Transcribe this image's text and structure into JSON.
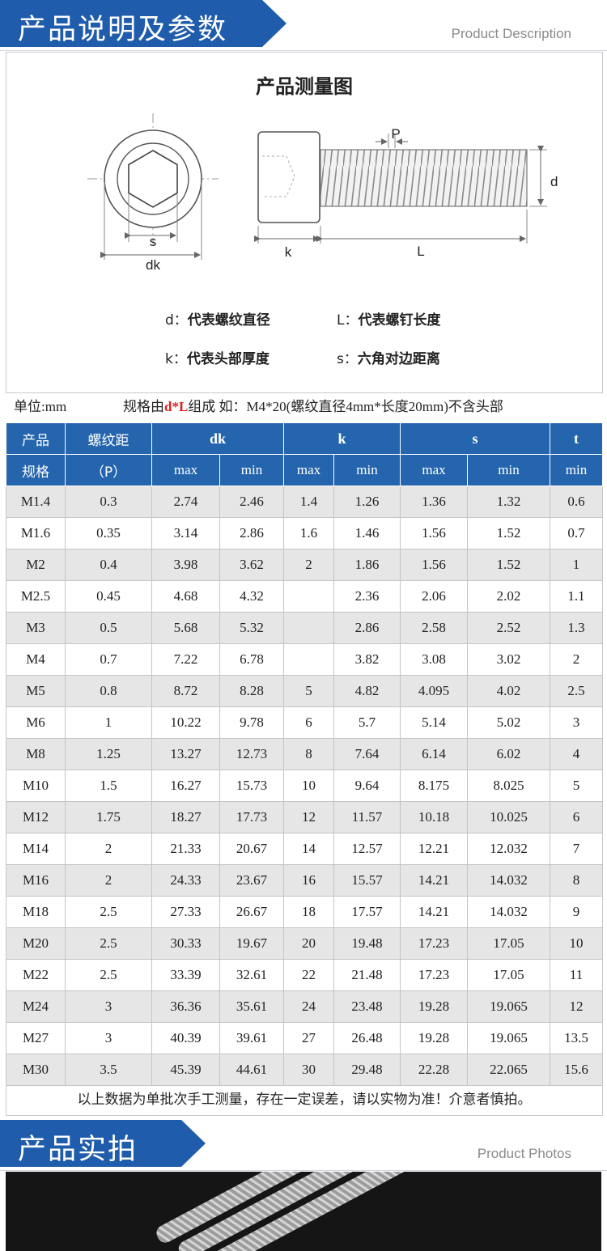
{
  "section1": {
    "title": "产品说明及参数",
    "subtitle": "Product Description"
  },
  "diagram": {
    "title": "产品测量图",
    "labels": {
      "s": "s",
      "dk": "dk",
      "P": "P",
      "d": "d",
      "k": "k",
      "L": "L"
    },
    "legend": [
      {
        "key": "d：",
        "text": "代表螺纹直径"
      },
      {
        "key": "L：",
        "text": "代表螺钉长度"
      },
      {
        "key": "k：",
        "text": "代表头部厚度"
      },
      {
        "key": "s：",
        "text": "六角对边距离"
      }
    ]
  },
  "unit": {
    "label": "单位:mm",
    "note_prefix": "规格由",
    "note_highlight": "d*L",
    "note_suffix": "组成 如：M4*20(螺纹直径4mm*长度20mm)不含头部"
  },
  "table": {
    "header_top": [
      "产品",
      "螺纹距",
      "dk",
      "k",
      "s",
      "t"
    ],
    "header_bottom_left": [
      "规格",
      "（P）"
    ],
    "subheaders": [
      "max",
      "min",
      "max",
      "min",
      "max",
      "min",
      "min"
    ],
    "rows": [
      [
        "M1.4",
        "0.3",
        "2.74",
        "2.46",
        "1.4",
        "1.26",
        "1.36",
        "1.32",
        "0.6"
      ],
      [
        "M1.6",
        "0.35",
        "3.14",
        "2.86",
        "1.6",
        "1.46",
        "1.56",
        "1.52",
        "0.7"
      ],
      [
        "M2",
        "0.4",
        "3.98",
        "3.62",
        "2",
        "1.86",
        "1.56",
        "1.52",
        "1"
      ],
      [
        "M2.5",
        "0.45",
        "4.68",
        "4.32",
        "",
        "2.36",
        "2.06",
        "2.02",
        "1.1"
      ],
      [
        "M3",
        "0.5",
        "5.68",
        "5.32",
        "",
        "2.86",
        "2.58",
        "2.52",
        "1.3"
      ],
      [
        "M4",
        "0.7",
        "7.22",
        "6.78",
        "",
        "3.82",
        "3.08",
        "3.02",
        "2"
      ],
      [
        "M5",
        "0.8",
        "8.72",
        "8.28",
        "5",
        "4.82",
        "4.095",
        "4.02",
        "2.5"
      ],
      [
        "M6",
        "1",
        "10.22",
        "9.78",
        "6",
        "5.7",
        "5.14",
        "5.02",
        "3"
      ],
      [
        "M8",
        "1.25",
        "13.27",
        "12.73",
        "8",
        "7.64",
        "6.14",
        "6.02",
        "4"
      ],
      [
        "M10",
        "1.5",
        "16.27",
        "15.73",
        "10",
        "9.64",
        "8.175",
        "8.025",
        "5"
      ],
      [
        "M12",
        "1.75",
        "18.27",
        "17.73",
        "12",
        "11.57",
        "10.18",
        "10.025",
        "6"
      ],
      [
        "M14",
        "2",
        "21.33",
        "20.67",
        "14",
        "12.57",
        "12.21",
        "12.032",
        "7"
      ],
      [
        "M16",
        "2",
        "24.33",
        "23.67",
        "16",
        "15.57",
        "14.21",
        "14.032",
        "8"
      ],
      [
        "M18",
        "2.5",
        "27.33",
        "26.67",
        "18",
        "17.57",
        "14.21",
        "14.032",
        "9"
      ],
      [
        "M20",
        "2.5",
        "30.33",
        "19.67",
        "20",
        "19.48",
        "17.23",
        "17.05",
        "10"
      ],
      [
        "M22",
        "2.5",
        "33.39",
        "32.61",
        "22",
        "21.48",
        "17.23",
        "17.05",
        "11"
      ],
      [
        "M24",
        "3",
        "36.36",
        "35.61",
        "24",
        "23.48",
        "19.28",
        "19.065",
        "12"
      ],
      [
        "M27",
        "3",
        "40.39",
        "39.61",
        "27",
        "26.48",
        "19.28",
        "19.065",
        "13.5"
      ],
      [
        "M30",
        "3.5",
        "45.39",
        "44.61",
        "30",
        "29.48",
        "22.28",
        "22.065",
        "15.6"
      ]
    ],
    "footnote": "以上数据为单批次手工测量，存在一定误差，请以实物为准！介意者慎拍。"
  },
  "section2": {
    "title": "产品实拍",
    "subtitle": "Product Photos"
  },
  "colors": {
    "banner": "#1f5cab",
    "table_header": "#2565ae",
    "highlight": "#e02020",
    "stripe": "#e6e6e6"
  }
}
